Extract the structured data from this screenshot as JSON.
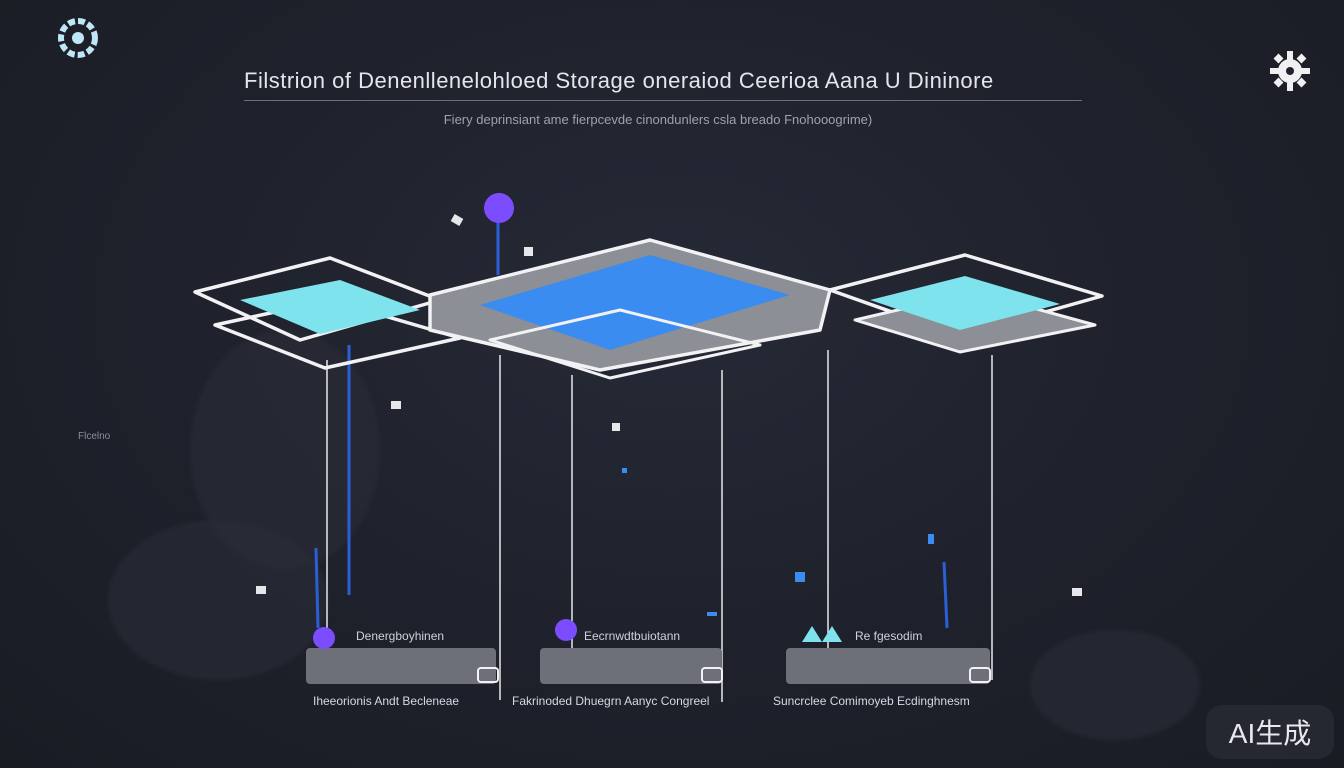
{
  "header": {
    "title": "Filstrion of Denenllenelohloed Storage oneraiod Ceerioa Aana U Dininore",
    "subtitle": "Fiery deprinsiant ame fierpcevde cinondunlers csla breado Fnohooogrime)"
  },
  "icons": {
    "top_left": "ring-settings-icon",
    "top_right": "gear-icon"
  },
  "side_label": "Flcelno",
  "nodes": [
    {
      "label": "Denergboyhinen",
      "base_label": "Iheeorionis Andt Becleneae"
    },
    {
      "label": "Eecrnwdtbuiotann",
      "base_label": "Fakrinoded Dhuegrn Aanyc Congreel"
    },
    {
      "label": "Re fgesodim",
      "base_label": "Suncrclee Comimoyeb Ecdinghnesm"
    }
  ],
  "badge": {
    "text": "AI生成"
  },
  "colors": {
    "background": "#1e212b",
    "accent_blue": "#3b8cf0",
    "accent_cyan": "#7fe3ee",
    "accent_purple": "#7b4dff",
    "outline": "#f2f2f4",
    "platform_gray": "#8c8f96"
  }
}
